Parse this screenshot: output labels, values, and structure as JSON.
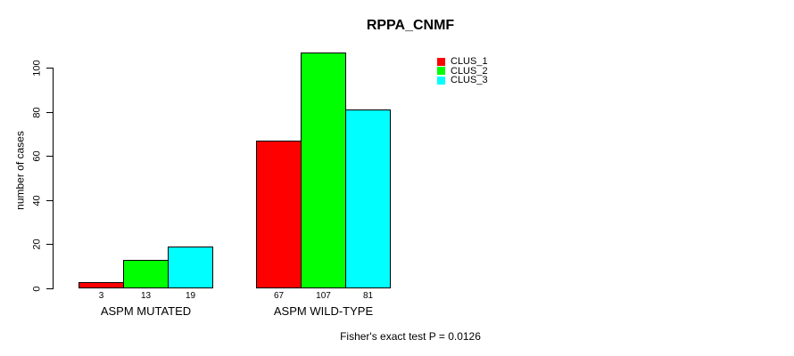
{
  "chart_data": {
    "type": "bar",
    "title": "RPPA_CNMF",
    "ylabel": "number of cases",
    "xlabel": "",
    "ylim": [
      0,
      107
    ],
    "yticks": [
      0,
      20,
      40,
      60,
      80,
      100
    ],
    "grid": false,
    "legend_position": "top-right",
    "bar_value_labels": true,
    "categories": [
      "ASPM MUTATED",
      "ASPM WILD-TYPE"
    ],
    "series": [
      {
        "name": "CLUS_1",
        "color": "#ff0000",
        "values": [
          3,
          67
        ]
      },
      {
        "name": "CLUS_2",
        "color": "#00ff00",
        "values": [
          13,
          107
        ]
      },
      {
        "name": "CLUS_3",
        "color": "#00ffff",
        "values": [
          19,
          81
        ]
      }
    ],
    "annotation": "Fisher's exact test P = 0.0126",
    "axis_color": "#000000",
    "background": "#ffffff"
  }
}
